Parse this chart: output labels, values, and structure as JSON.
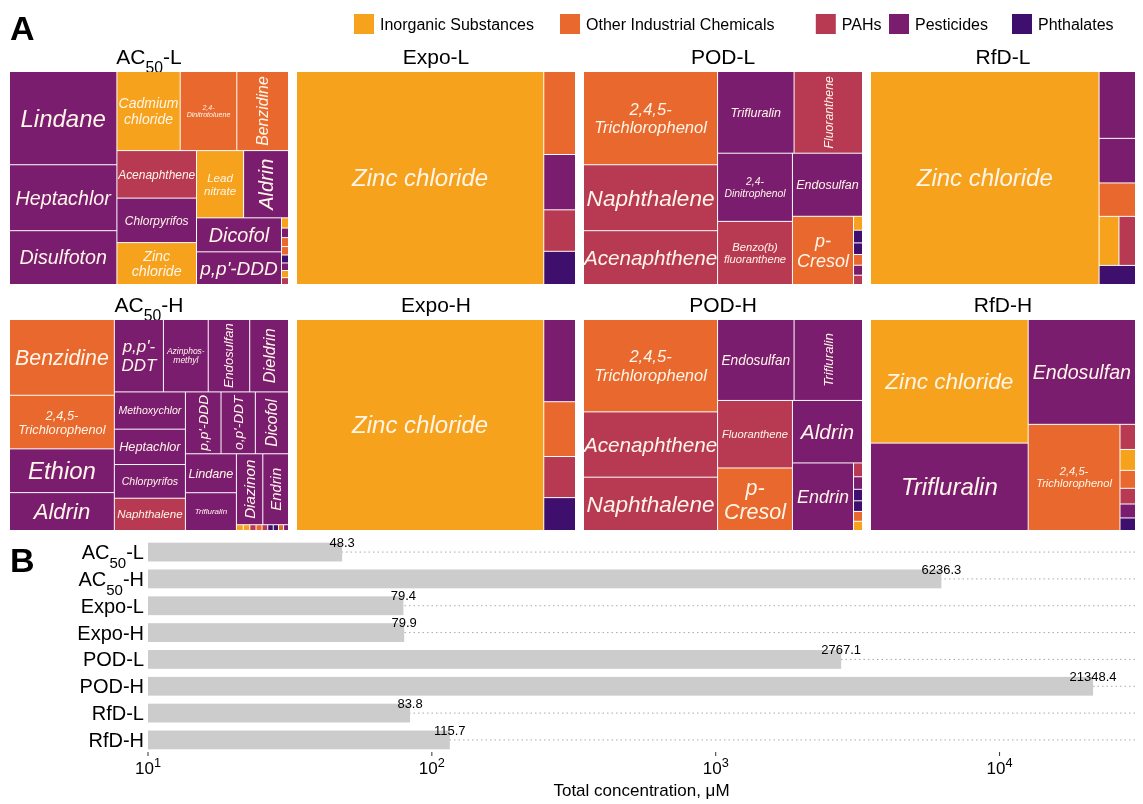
{
  "chart_data": [
    {
      "type": "other",
      "categories": [
        "Inorganic Substances",
        "Other Industrial Chemicals",
        "PAHs",
        "Pesticides",
        "Phthalates"
      ],
      "colors": [
        "#f6a21c",
        "#e8682d",
        "#b83a52",
        "#7b1d6f",
        "#3e0f6d"
      ]
    },
    {
      "type": "other",
      "title": "AC$_{50}$-L",
      "annotations": [
        "A"
      ],
      "categories": [
        "Lindane",
        "Heptachlor",
        "Disulfoton",
        "Cadmium chloride",
        "2,4-Dinitrotoluene",
        "Benzidine",
        "Acenaphthene",
        "Chlorpyrifos",
        "Zinc chloride",
        "Lead nitrate",
        "Aldrin",
        "Dicofol",
        "p,p'-DDD",
        null,
        null,
        null,
        null,
        null,
        null,
        null,
        null
      ],
      "colors": [
        "#7b1d6f",
        "#7b1d6f",
        "#7b1d6f",
        "#f6a21c",
        "#e8682d",
        "#e8682d",
        "#b83a52",
        "#7b1d6f",
        "#f6a21c",
        "#f6a21c",
        "#7b1d6f",
        "#7b1d6f",
        "#7b1d6f",
        "#f6a21c",
        "#7b1d6f",
        "#e8682d",
        "#e8682d",
        "#3e0f6d",
        "#7b1d6f",
        "#f6a21c",
        "#b83a52"
      ]
    },
    {
      "type": "other",
      "title": "Expo-L",
      "categories": [
        "Zinc chloride",
        null,
        null,
        null,
        null
      ],
      "colors": [
        "#f6a21c",
        "#e8682d",
        "#7b1d6f",
        "#b83a52",
        "#3e0f6d"
      ]
    },
    {
      "type": "other",
      "title": "POD-L",
      "categories": [
        "2,4,5-Trichlorophenol",
        "Naphthalene",
        "Acenaphthene",
        "Trifluralin",
        "Fluoranthene",
        "2,4-Dinitrophenol",
        "Benzo(b)fluoranthene",
        "Endosulfan",
        "p-Cresol",
        null,
        null,
        null,
        null,
        null,
        null
      ],
      "colors": [
        "#e8682d",
        "#b83a52",
        "#b83a52",
        "#7b1d6f",
        "#b83a52",
        "#7b1d6f",
        "#b83a52",
        "#7b1d6f",
        "#e8682d",
        "#f6a21c",
        "#3e0f6d",
        "#3e0f6d",
        "#e8682d",
        "#7b1d6f",
        "#b83a52"
      ]
    },
    {
      "type": "other",
      "title": "RfD-L",
      "categories": [
        "Zinc chloride",
        null,
        null,
        null,
        null,
        null,
        null
      ],
      "colors": [
        "#f6a21c",
        "#7b1d6f",
        "#7b1d6f",
        "#e8682d",
        "#f6a21c",
        "#b83a52",
        "#3e0f6d"
      ]
    },
    {
      "type": "other",
      "title": "AC$_{50}$-H",
      "categories": [
        "Benzidine",
        "2,4,5-Trichlorophenol",
        "Ethion",
        "Aldrin",
        "p,p'-DDT",
        "Azinphos-methyl",
        "Endosulfan",
        "Dieldrin",
        "Methoxychlor",
        "Heptachlor",
        "Chlorpyrifos",
        "Naphthalene",
        "p,p'-DDD",
        "o,p'-DDT",
        "Dicofol",
        "Lindane",
        "Trifluralin",
        "Diazinon",
        "Endrin",
        null,
        null,
        null,
        null,
        null,
        null,
        null,
        null,
        null
      ],
      "colors": [
        "#e8682d",
        "#e8682d",
        "#7b1d6f",
        "#7b1d6f",
        "#7b1d6f",
        "#7b1d6f",
        "#7b1d6f",
        "#7b1d6f",
        "#7b1d6f",
        "#7b1d6f",
        "#7b1d6f",
        "#b83a52",
        "#7b1d6f",
        "#7b1d6f",
        "#7b1d6f",
        "#7b1d6f",
        "#7b1d6f",
        "#7b1d6f",
        "#7b1d6f",
        "#f6a21c",
        "#f6a21c",
        "#b83a52",
        "#e8682d",
        "#b83a52",
        "#3e0f6d",
        "#3e0f6d",
        "#e8682d",
        "#7b1d6f"
      ]
    },
    {
      "type": "other",
      "title": "Expo-H",
      "categories": [
        "Zinc chloride",
        null,
        null,
        null,
        null
      ],
      "colors": [
        "#f6a21c",
        "#7b1d6f",
        "#e8682d",
        "#b83a52",
        "#3e0f6d"
      ]
    },
    {
      "type": "other",
      "title": "POD-H",
      "categories": [
        "2,4,5-Trichlorophenol",
        "Acenaphthene",
        "Naphthalene",
        "Endosulfan",
        "Trifluralin",
        "Fluoranthene",
        "p-Cresol",
        "Aldrin",
        "Endrin",
        null,
        null,
        null,
        null,
        null,
        null
      ],
      "colors": [
        "#e8682d",
        "#b83a52",
        "#b83a52",
        "#7b1d6f",
        "#7b1d6f",
        "#b83a52",
        "#e8682d",
        "#7b1d6f",
        "#7b1d6f",
        "#b83a52",
        "#7b1d6f",
        "#3e0f6d",
        "#3e0f6d",
        "#e8682d",
        "#f6a21c"
      ]
    },
    {
      "type": "other",
      "title": "RfD-H",
      "categories": [
        "Zinc chloride",
        "Trifluralin",
        "Endosulfan",
        "2,4,5-Trichlorophenol",
        null,
        null,
        null,
        null,
        null,
        null
      ],
      "colors": [
        "#f6a21c",
        "#7b1d6f",
        "#7b1d6f",
        "#e8682d",
        "#b83a52",
        "#f6a21c",
        "#e8682d",
        "#b83a52",
        "#7b1d6f",
        "#3e0f6d"
      ]
    },
    {
      "type": "bar",
      "orientation": "horizontal",
      "log": "x",
      "annotations": [
        "B"
      ],
      "categories": [
        "AC$_{50}$-L",
        "AC$_{50}$-H",
        "Expo-L",
        "Expo-H",
        "POD-L",
        "POD-H",
        "RfD-L",
        "RfD-H"
      ],
      "values": [
        48.3,
        6236.3,
        79.4,
        79.9,
        2767.1,
        21348.4,
        83.8,
        115.7
      ],
      "color": "#cccccc",
      "data_labels": true,
      "grid": "y",
      "xlim": [
        10,
        30000
      ],
      "xticks": [
        {
          "value": 10,
          "label": "10$^{1}$"
        },
        {
          "value": 100,
          "label": "10$^{2}$"
        },
        {
          "value": 1000,
          "label": "10$^{3}$"
        },
        {
          "value": 10000,
          "label": "10$^{4}$"
        }
      ],
      "xlabel": "Total concentration, μM"
    }
  ]
}
